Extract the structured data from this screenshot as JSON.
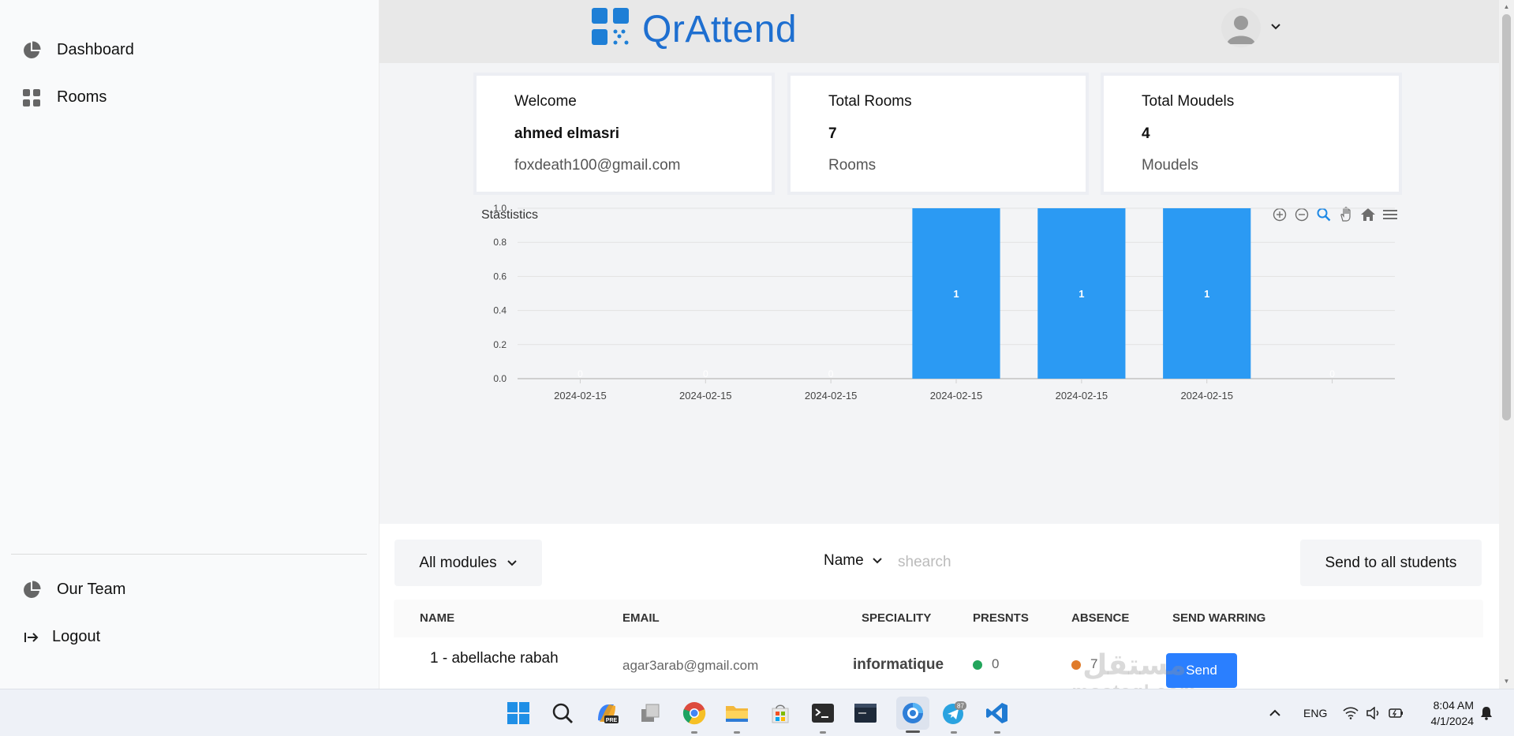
{
  "sidebar": {
    "items": [
      {
        "label": "Dashboard",
        "icon": "pie-chart-icon"
      },
      {
        "label": "Rooms",
        "icon": "grid-icon"
      }
    ],
    "bottom_items": [
      {
        "label": "Our Team",
        "icon": "pie-chart-icon"
      },
      {
        "label": "Logout",
        "icon": "logout-icon"
      }
    ]
  },
  "header": {
    "app_name": "QrAttend"
  },
  "cards": {
    "welcome": {
      "title": "Welcome",
      "value": "ahmed elmasri",
      "sub": "foxdeath100@gmail.com"
    },
    "rooms": {
      "title": "Total Rooms",
      "value": "7",
      "sub": "Rooms"
    },
    "moudels": {
      "title": "Total Moudels",
      "value": "4",
      "sub": "Moudels"
    }
  },
  "stats": {
    "title": "Stastistics"
  },
  "chart_data": {
    "type": "bar",
    "categories": [
      "2024-02-15",
      "2024-02-15",
      "2024-02-15",
      "2024-02-15",
      "2024-02-15",
      "2024-02-15",
      ""
    ],
    "values": [
      0,
      0,
      0,
      1,
      1,
      1,
      0
    ],
    "data_labels": [
      "0",
      "0",
      "0",
      "1",
      "1",
      "1",
      "0"
    ],
    "yticks": [
      "0.0",
      "0.2",
      "0.4",
      "0.6",
      "0.8",
      "1.0"
    ],
    "ylim": [
      0,
      1
    ],
    "grid": true,
    "bar_color": "#2b9af3"
  },
  "filters": {
    "modules_label": "All modules",
    "name_label": "Name",
    "search_placeholder": "shearch",
    "send_all_label": "Send to all students"
  },
  "table": {
    "headers": [
      "NAME",
      "EMAIL",
      "SPECIALITY",
      "PRESNTS",
      "ABSENCE",
      "SEND WARRING"
    ],
    "rows": [
      {
        "name": "1 - abellache rabah",
        "email": "agar3arab@gmail.com",
        "speciality": "informatique",
        "presents": "0",
        "absence": "7",
        "action": "Send"
      }
    ]
  },
  "watermark": {
    "text": "مستقل",
    "sub": "mostaql.com"
  },
  "taskbar": {
    "lang": "ENG",
    "time": "8:04 AM",
    "date": "4/1/2024",
    "telegram_badge": "87",
    "copilot_badge": "PRE"
  },
  "colors": {
    "accent": "#2a7fff",
    "logo": "#1e6fd0",
    "present_dot": "#22a55b",
    "absence_dot": "#e07b2a"
  }
}
